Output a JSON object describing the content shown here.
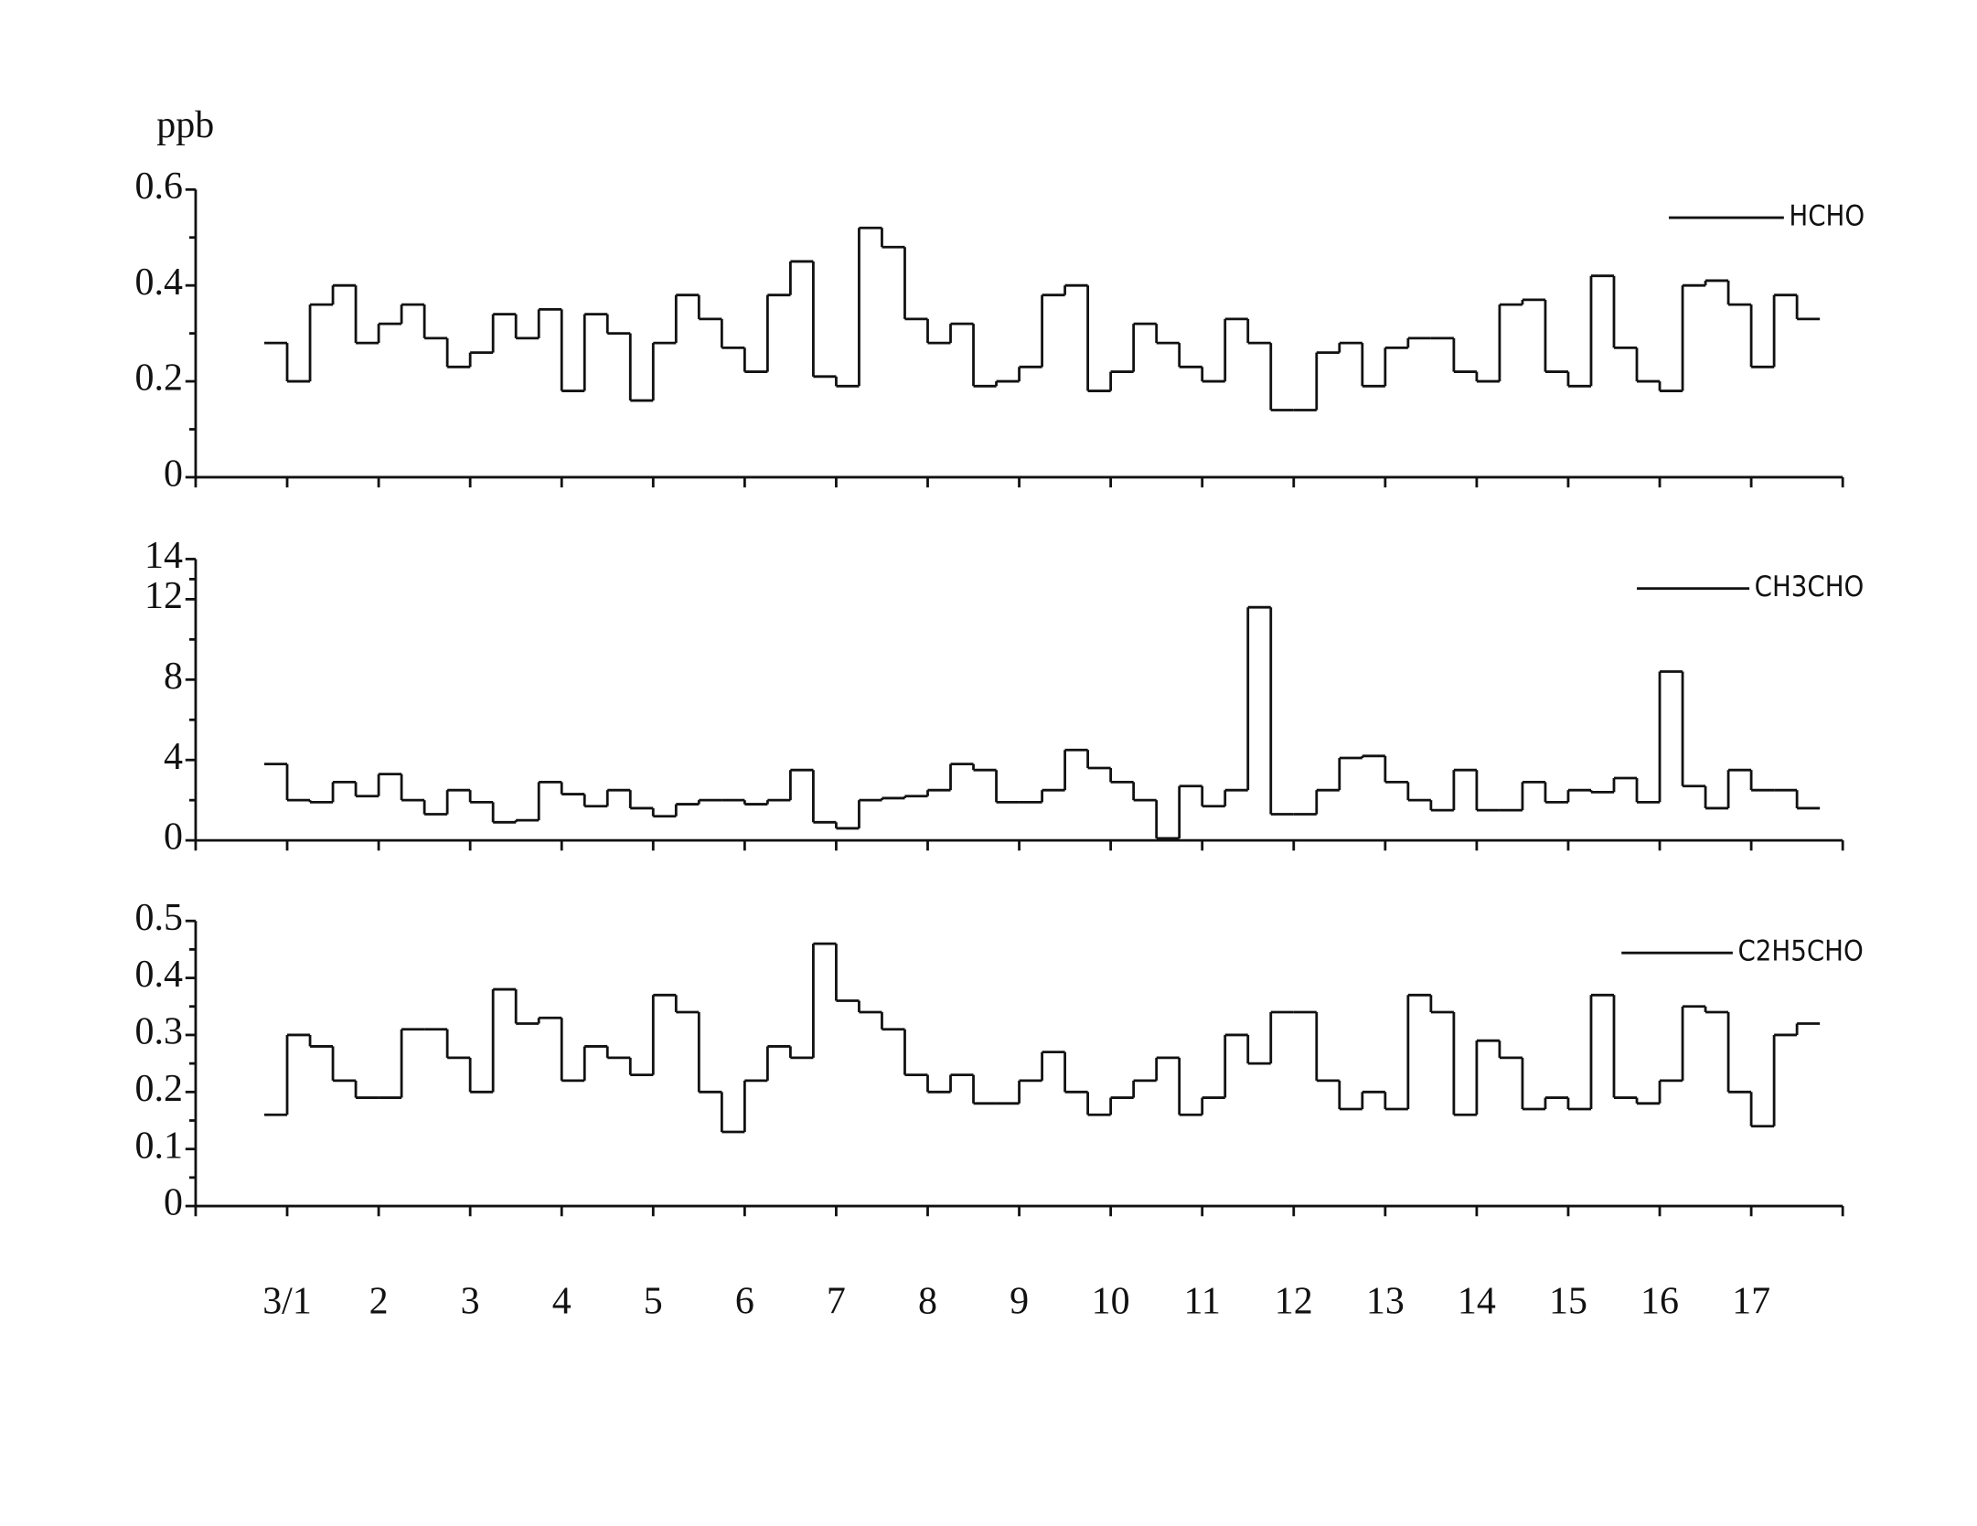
{
  "chart_data": [
    {
      "type": "line",
      "drawstyle": "steps",
      "ylabel": "ppb",
      "ylim": [
        0,
        0.6
      ],
      "yticks": [
        0,
        0.2,
        0.4,
        0.6
      ],
      "legend": "upper right",
      "series": [
        {
          "name": "HCHO",
          "color": "#111111",
          "values": [
            0.28,
            0.2,
            0.36,
            0.4,
            0.28,
            0.32,
            0.36,
            0.29,
            0.23,
            0.26,
            0.34,
            0.29,
            0.35,
            0.18,
            0.34,
            0.3,
            0.16,
            0.28,
            0.38,
            0.33,
            0.27,
            0.22,
            0.38,
            0.45,
            0.21,
            0.19,
            0.52,
            0.48,
            0.33,
            0.28,
            0.32,
            0.19,
            0.2,
            0.23,
            0.38,
            0.4,
            0.18,
            0.22,
            0.32,
            0.28,
            0.23,
            0.2,
            0.33,
            0.28,
            0.14,
            0.14,
            0.26,
            0.28,
            0.19,
            0.27,
            0.29,
            0.29,
            0.22,
            0.2,
            0.36,
            0.37,
            0.22,
            0.19,
            0.42,
            0.27,
            0.2,
            0.18,
            0.4,
            0.41,
            0.36,
            0.23,
            0.38,
            0.33
          ]
        }
      ]
    },
    {
      "type": "line",
      "drawstyle": "steps",
      "ylim": [
        0,
        14
      ],
      "yticks": [
        0,
        4,
        8,
        12,
        14
      ],
      "legend": "upper right",
      "series": [
        {
          "name": "CH3CHO",
          "color": "#111111",
          "values": [
            3.8,
            2.0,
            1.9,
            2.9,
            2.2,
            3.3,
            2.0,
            1.3,
            2.5,
            1.9,
            0.9,
            1.0,
            2.9,
            2.3,
            1.7,
            2.5,
            1.6,
            1.2,
            1.8,
            2.0,
            2.0,
            1.8,
            2.0,
            3.5,
            0.9,
            0.6,
            2.0,
            2.1,
            2.2,
            2.5,
            3.8,
            3.5,
            1.9,
            1.9,
            2.5,
            4.5,
            3.6,
            2.9,
            2.0,
            0.1,
            2.7,
            1.7,
            2.5,
            11.6,
            1.3,
            1.3,
            2.5,
            4.1,
            4.2,
            2.9,
            2.0,
            1.5,
            3.5,
            1.5,
            1.5,
            2.9,
            1.9,
            2.5,
            2.4,
            3.1,
            1.9,
            8.4,
            2.7,
            1.6,
            3.5,
            2.5,
            2.5,
            1.6
          ]
        }
      ]
    },
    {
      "type": "line",
      "drawstyle": "steps",
      "ylim": [
        0,
        0.5
      ],
      "yticks": [
        0,
        0.1,
        0.2,
        0.3,
        0.4,
        0.5
      ],
      "legend": "upper right",
      "categories": [
        "3/1",
        null,
        null,
        null,
        "2",
        null,
        null,
        null,
        "3",
        null,
        null,
        null,
        "4",
        null,
        null,
        null,
        "5",
        null,
        null,
        null,
        "6",
        null,
        null,
        null,
        "7",
        null,
        null,
        null,
        "8",
        null,
        null,
        null,
        "9",
        null,
        null,
        null,
        "10",
        null,
        null,
        null,
        "11",
        null,
        null,
        null,
        "12",
        null,
        null,
        null,
        "13",
        null,
        null,
        null,
        "14",
        null,
        null,
        null,
        "15",
        null,
        null,
        null,
        "16",
        null,
        null,
        null,
        "17",
        null,
        null,
        null
      ],
      "series": [
        {
          "name": "C2H5CHO",
          "color": "#111111",
          "values": [
            0.16,
            0.3,
            0.28,
            0.22,
            0.19,
            0.19,
            0.31,
            0.31,
            0.26,
            0.2,
            0.38,
            0.32,
            0.33,
            0.22,
            0.28,
            0.26,
            0.23,
            0.37,
            0.34,
            0.2,
            0.13,
            0.22,
            0.28,
            0.26,
            0.46,
            0.36,
            0.34,
            0.31,
            0.23,
            0.2,
            0.23,
            0.18,
            0.18,
            0.22,
            0.27,
            0.2,
            0.16,
            0.19,
            0.22,
            0.26,
            0.16,
            0.19,
            0.3,
            0.25,
            0.34,
            0.34,
            0.22,
            0.17,
            0.2,
            0.17,
            0.37,
            0.34,
            0.16,
            0.29,
            0.26,
            0.17,
            0.19,
            0.17,
            0.37,
            0.19,
            0.18,
            0.22,
            0.35,
            0.34,
            0.2,
            0.14,
            0.3,
            0.32
          ]
        }
      ]
    }
  ]
}
